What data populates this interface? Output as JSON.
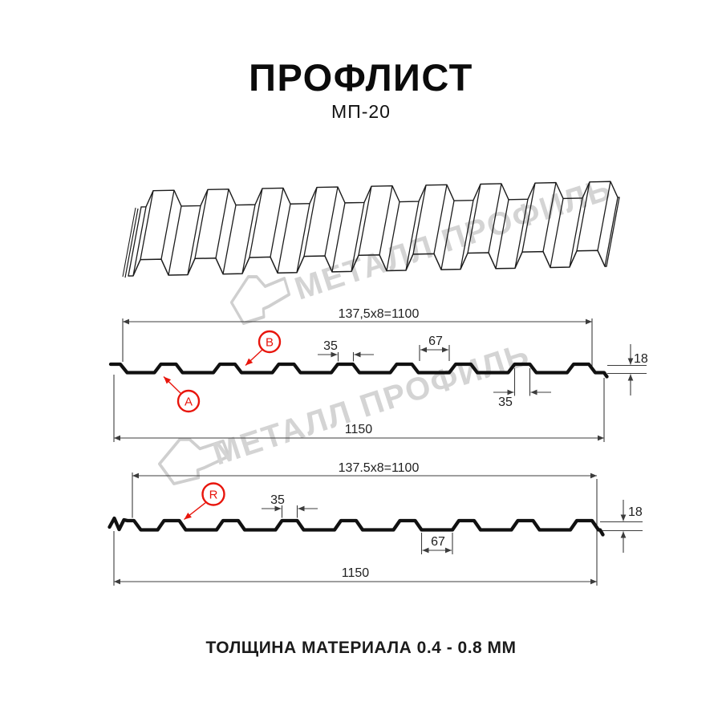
{
  "page": {
    "title": "ПРОФЛИСТ",
    "subtitle": "МП-20",
    "footer": "ТОЛЩИНА МАТЕРИАЛА 0.4 - 0.8 ММ"
  },
  "watermark": {
    "text": "МЕТАЛЛ ПРОФИЛЬ",
    "color": "#d4d4d4"
  },
  "colors": {
    "line": "#1c1c1c",
    "profile": "#111111",
    "dim": "#3c3c3c",
    "accent_red": "#e8150c",
    "background": "#ffffff"
  },
  "sections": [
    {
      "name": "profile-view-A-B",
      "pitch_label": "137,5x8=1100",
      "width_label": "1150",
      "dim_rib_top": "35",
      "dim_valley": "67",
      "dim_height": "18",
      "dim_rib_bottom": "35",
      "callout_a": "A",
      "callout_b": "B"
    },
    {
      "name": "profile-view-R",
      "pitch_label": "137.5x8=1100",
      "width_label": "1150",
      "dim_rib_top": "35",
      "dim_valley": "67",
      "dim_height": "18",
      "callout_r": "R"
    }
  ]
}
